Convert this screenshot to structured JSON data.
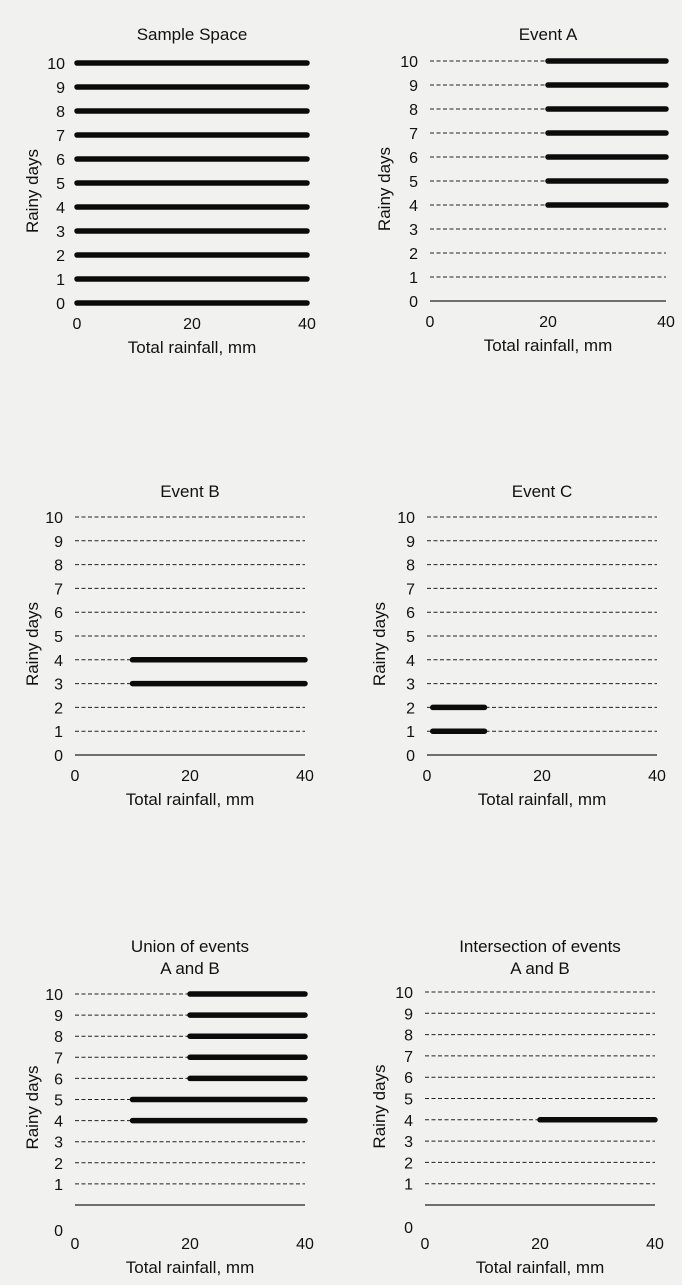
{
  "chart_data": [
    {
      "type": "line",
      "title": "Sample Space",
      "xlabel": "Total rainfall, mm",
      "ylabel": "Rainy days",
      "xlim": [
        0,
        40
      ],
      "ylim": [
        0,
        10
      ],
      "xticks": [
        "0",
        "20",
        "40"
      ],
      "yticks": [
        "0",
        "1",
        "2",
        "3",
        "4",
        "5",
        "6",
        "7",
        "8",
        "9",
        "10"
      ],
      "grid": "dashed horizontal lines at each rainy-day value",
      "series": [
        {
          "y": 0,
          "x": [
            0,
            40
          ]
        },
        {
          "y": 1,
          "x": [
            0,
            40
          ]
        },
        {
          "y": 2,
          "x": [
            0,
            40
          ]
        },
        {
          "y": 3,
          "x": [
            0,
            40
          ]
        },
        {
          "y": 4,
          "x": [
            0,
            40
          ]
        },
        {
          "y": 5,
          "x": [
            0,
            40
          ]
        },
        {
          "y": 6,
          "x": [
            0,
            40
          ]
        },
        {
          "y": 7,
          "x": [
            0,
            40
          ]
        },
        {
          "y": 8,
          "x": [
            0,
            40
          ]
        },
        {
          "y": 9,
          "x": [
            0,
            40
          ]
        },
        {
          "y": 10,
          "x": [
            0,
            40
          ]
        }
      ]
    },
    {
      "type": "line",
      "title": "Event A",
      "xlabel": "Total rainfall, mm",
      "ylabel": "Rainy days",
      "xlim": [
        0,
        40
      ],
      "ylim": [
        0,
        10
      ],
      "xticks": [
        "0",
        "20",
        "40"
      ],
      "yticks": [
        "0",
        "1",
        "2",
        "3",
        "4",
        "5",
        "6",
        "7",
        "8",
        "9",
        "10"
      ],
      "grid": "dashed horizontal lines at each rainy-day value",
      "series": [
        {
          "y": 4,
          "x": [
            20,
            40
          ]
        },
        {
          "y": 5,
          "x": [
            20,
            40
          ]
        },
        {
          "y": 6,
          "x": [
            20,
            40
          ]
        },
        {
          "y": 7,
          "x": [
            20,
            40
          ]
        },
        {
          "y": 8,
          "x": [
            20,
            40
          ]
        },
        {
          "y": 9,
          "x": [
            20,
            40
          ]
        },
        {
          "y": 10,
          "x": [
            20,
            40
          ]
        }
      ]
    },
    {
      "type": "line",
      "title": "Event B",
      "xlabel": "Total rainfall, mm",
      "ylabel": "Rainy days",
      "xlim": [
        0,
        40
      ],
      "ylim": [
        0,
        10
      ],
      "xticks": [
        "0",
        "20",
        "40"
      ],
      "yticks": [
        "0",
        "1",
        "2",
        "3",
        "4",
        "5",
        "6",
        "7",
        "8",
        "9",
        "10"
      ],
      "grid": "dashed horizontal lines at each rainy-day value",
      "series": [
        {
          "y": 3,
          "x": [
            10,
            40
          ]
        },
        {
          "y": 4,
          "x": [
            10,
            40
          ]
        }
      ]
    },
    {
      "type": "line",
      "title": "Event C",
      "xlabel": "Total rainfall, mm",
      "ylabel": "Rainy days",
      "xlim": [
        0,
        40
      ],
      "ylim": [
        0,
        10
      ],
      "xticks": [
        "0",
        "20",
        "40"
      ],
      "yticks": [
        "0",
        "1",
        "2",
        "3",
        "4",
        "5",
        "6",
        "7",
        "8",
        "9",
        "10"
      ],
      "grid": "dashed horizontal lines at each rainy-day value",
      "series": [
        {
          "y": 1,
          "x": [
            1,
            10
          ]
        },
        {
          "y": 2,
          "x": [
            1,
            10
          ]
        }
      ]
    },
    {
      "type": "line",
      "title": "Union of events",
      "subtitle": "A and B",
      "xlabel": "Total rainfall, mm",
      "ylabel": "Rainy days",
      "xlim": [
        0,
        40
      ],
      "ylim": [
        0,
        10
      ],
      "xticks": [
        "0",
        "20",
        "40"
      ],
      "yticks": [
        "0",
        "1",
        "2",
        "3",
        "4",
        "5",
        "6",
        "7",
        "8",
        "9",
        "10"
      ],
      "grid": "dashed horizontal lines at each rainy-day value",
      "series": [
        {
          "y": 4,
          "x": [
            10,
            40
          ]
        },
        {
          "y": 5,
          "x": [
            10,
            40
          ]
        },
        {
          "y": 6,
          "x": [
            20,
            40
          ]
        },
        {
          "y": 7,
          "x": [
            20,
            40
          ]
        },
        {
          "y": 8,
          "x": [
            20,
            40
          ]
        },
        {
          "y": 9,
          "x": [
            20,
            40
          ]
        },
        {
          "y": 10,
          "x": [
            20,
            40
          ]
        }
      ]
    },
    {
      "type": "line",
      "title": "Intersection of events",
      "subtitle": "A and B",
      "xlabel": "Total rainfall, mm",
      "ylabel": "Rainy days",
      "xlim": [
        0,
        40
      ],
      "ylim": [
        0,
        10
      ],
      "xticks": [
        "0",
        "20",
        "40"
      ],
      "yticks": [
        "0",
        "1",
        "2",
        "3",
        "4",
        "5",
        "6",
        "7",
        "8",
        "9",
        "10"
      ],
      "grid": "dashed horizontal lines at each rainy-day value",
      "series": [
        {
          "y": 4,
          "x": [
            20,
            40
          ]
        }
      ]
    }
  ]
}
